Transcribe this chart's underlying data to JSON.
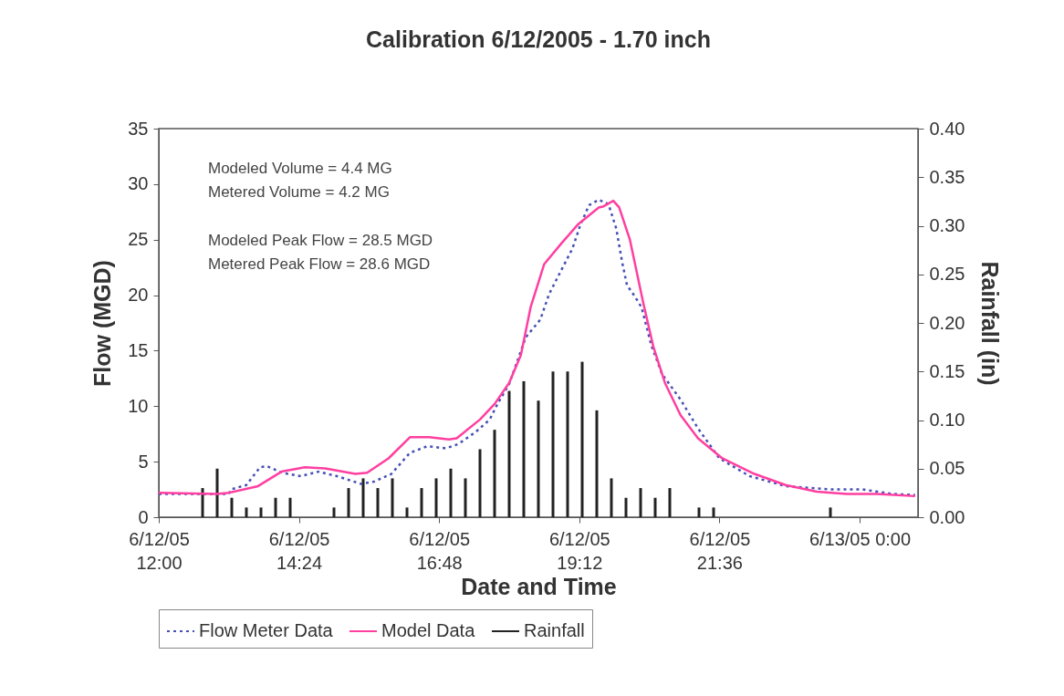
{
  "chart_data": {
    "type": "line",
    "title": "Calibration 6/12/2005 - 1.70 inch",
    "xlabel": "Date and Time",
    "ylabel": "Flow (MGD)",
    "y2label": "Rainfall (in)",
    "annotations": [
      "Modeled Volume = 4.4 MG",
      "Metered Volume = 4.2 MG",
      "Modeled Peak Flow = 28.5 MGD",
      "Metered Peak Flow = 28.6 MGD"
    ],
    "xlim": [
      "2005-06-12T12:00",
      "2005-06-13T01:00"
    ],
    "xticks": [
      {
        "value": "2005-06-12T12:00",
        "label": "6/12/05\n12:00"
      },
      {
        "value": "2005-06-12T14:24",
        "label": "6/12/05\n14:24"
      },
      {
        "value": "2005-06-12T16:48",
        "label": "6/12/05\n16:48"
      },
      {
        "value": "2005-06-12T19:12",
        "label": "6/12/05\n19:12"
      },
      {
        "value": "2005-06-12T21:36",
        "label": "6/12/05\n21:36"
      },
      {
        "value": "2005-06-13T00:00",
        "label": "6/13/05 0:00"
      }
    ],
    "ylim": [
      0,
      35
    ],
    "yticks": [
      0,
      5,
      10,
      15,
      20,
      25,
      30,
      35
    ],
    "y2lim": [
      0,
      0.4
    ],
    "y2ticks": [
      {
        "value": 0,
        "label": "0.00"
      },
      {
        "value": 0.05,
        "label": "0.05"
      },
      {
        "value": 0.1,
        "label": "0.10"
      },
      {
        "value": 0.15,
        "label": "0.15"
      },
      {
        "value": 0.2,
        "label": "0.20"
      },
      {
        "value": 0.25,
        "label": "0.25"
      },
      {
        "value": 0.3,
        "label": "0.30"
      },
      {
        "value": 0.35,
        "label": "0.35"
      },
      {
        "value": 0.4,
        "label": "0.40"
      }
    ],
    "grid": false,
    "legend": "bottom",
    "marker": "none",
    "series": [
      {
        "name": "Flow Meter Data",
        "color": "#4650b4",
        "line_style": "dotted",
        "x": [
          "2005-06-12T12:00",
          "2005-06-12T13:12",
          "2005-06-12T13:14",
          "2005-06-12T13:30",
          "2005-06-12T13:44",
          "2005-06-12T13:51",
          "2005-06-12T14:07",
          "2005-06-12T14:26",
          "2005-06-12T14:44",
          "2005-06-12T15:03",
          "2005-06-12T15:28",
          "2005-06-12T15:41",
          "2005-06-12T15:59",
          "2005-06-12T16:18",
          "2005-06-12T16:36",
          "2005-06-12T16:55",
          "2005-06-12T17:08",
          "2005-06-12T17:26",
          "2005-06-12T17:40",
          "2005-06-12T17:48",
          "2005-06-12T18:00",
          "2005-06-12T18:17",
          "2005-06-12T18:32",
          "2005-06-12T18:41",
          "2005-06-12T18:55",
          "2005-06-12T19:05",
          "2005-06-12T19:13",
          "2005-06-12T19:22",
          "2005-06-12T19:32",
          "2005-06-12T19:42",
          "2005-06-12T19:50",
          "2005-06-12T19:56",
          "2005-06-12T20:01",
          "2005-06-12T20:09",
          "2005-06-12T20:16",
          "2005-06-12T20:26",
          "2005-06-12T20:37",
          "2005-06-12T20:56",
          "2005-06-12T21:14",
          "2005-06-12T21:36",
          "2005-06-12T22:07",
          "2005-06-12T22:44",
          "2005-06-12T23:31",
          "2005-06-13T00:03",
          "2005-06-13T00:34",
          "2005-06-13T00:57"
        ],
        "values": [
          2.1,
          2.1,
          2.5,
          2.9,
          4.5,
          4.6,
          4.0,
          3.7,
          4.1,
          3.7,
          3.0,
          3.2,
          3.9,
          5.8,
          6.4,
          6.2,
          6.6,
          7.7,
          8.8,
          10.2,
          12.0,
          16.2,
          17.8,
          20.1,
          22.5,
          24.2,
          26.3,
          28.1,
          28.6,
          28.2,
          26.0,
          23.0,
          20.9,
          19.9,
          18.9,
          15.5,
          12.9,
          10.6,
          8.0,
          5.3,
          3.7,
          2.8,
          2.5,
          2.5,
          2.1,
          2.0
        ]
      },
      {
        "name": "Model Data",
        "color": "#ff3fa0",
        "line_style": "solid",
        "x": [
          "2005-06-12T12:00",
          "2005-06-12T13:00",
          "2005-06-12T13:12",
          "2005-06-12T13:42",
          "2005-06-12T14:06",
          "2005-06-12T14:30",
          "2005-06-12T14:51",
          "2005-06-12T15:22",
          "2005-06-12T15:34",
          "2005-06-12T15:56",
          "2005-06-12T16:18",
          "2005-06-12T16:38",
          "2005-06-12T16:58",
          "2005-06-12T17:06",
          "2005-06-12T17:30",
          "2005-06-12T17:45",
          "2005-06-12T18:00",
          "2005-06-12T18:12",
          "2005-06-12T18:22",
          "2005-06-12T18:36",
          "2005-06-12T18:54",
          "2005-06-12T19:11",
          "2005-06-12T19:32",
          "2005-06-12T19:37",
          "2005-06-12T19:47",
          "2005-06-12T19:53",
          "2005-06-12T20:04",
          "2005-06-12T20:18",
          "2005-06-12T20:28",
          "2005-06-12T20:40",
          "2005-06-12T20:56",
          "2005-06-12T21:14",
          "2005-06-12T21:39",
          "2005-06-12T22:12",
          "2005-06-12T22:44",
          "2005-06-12T23:16",
          "2005-06-12T23:47",
          "2005-06-13T00:18",
          "2005-06-13T00:57"
        ],
        "values": [
          2.2,
          2.1,
          2.2,
          2.8,
          4.1,
          4.5,
          4.4,
          3.9,
          4.0,
          5.3,
          7.2,
          7.2,
          7.0,
          7.1,
          8.8,
          10.2,
          12.1,
          14.6,
          18.9,
          22.8,
          24.7,
          26.4,
          27.9,
          28.0,
          28.5,
          27.9,
          25.0,
          19.2,
          15.4,
          12.1,
          9.2,
          7.1,
          5.3,
          3.9,
          2.9,
          2.3,
          2.1,
          2.1,
          1.9
        ]
      },
      {
        "name": "Rainfall",
        "type": "bar",
        "axis": "y2",
        "color": "#222222",
        "x": [
          "2005-06-12T12:45",
          "2005-06-12T13:00",
          "2005-06-12T13:15",
          "2005-06-12T13:30",
          "2005-06-12T13:45",
          "2005-06-12T14:00",
          "2005-06-12T14:15",
          "2005-06-12T15:00",
          "2005-06-12T15:15",
          "2005-06-12T15:30",
          "2005-06-12T15:45",
          "2005-06-12T16:00",
          "2005-06-12T16:15",
          "2005-06-12T16:30",
          "2005-06-12T16:45",
          "2005-06-12T17:00",
          "2005-06-12T17:15",
          "2005-06-12T17:30",
          "2005-06-12T17:45",
          "2005-06-12T18:00",
          "2005-06-12T18:15",
          "2005-06-12T18:30",
          "2005-06-12T18:45",
          "2005-06-12T19:00",
          "2005-06-12T19:15",
          "2005-06-12T19:30",
          "2005-06-12T19:45",
          "2005-06-12T20:00",
          "2005-06-12T20:15",
          "2005-06-12T20:30",
          "2005-06-12T20:45",
          "2005-06-12T21:15",
          "2005-06-12T21:30",
          "2005-06-12T23:30"
        ],
        "values": [
          0.03,
          0.05,
          0.02,
          0.01,
          0.01,
          0.02,
          0.02,
          0.01,
          0.03,
          0.04,
          0.03,
          0.04,
          0.01,
          0.03,
          0.04,
          0.05,
          0.04,
          0.07,
          0.09,
          0.13,
          0.14,
          0.12,
          0.15,
          0.15,
          0.16,
          0.11,
          0.04,
          0.02,
          0.03,
          0.02,
          0.03,
          0.01,
          0.01,
          0.01
        ]
      }
    ]
  }
}
